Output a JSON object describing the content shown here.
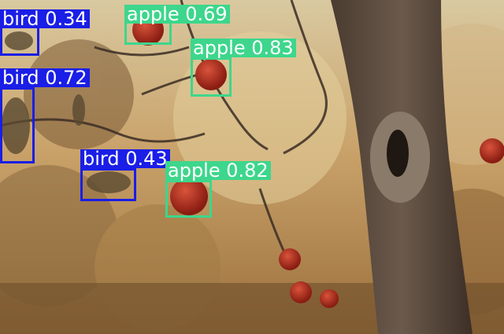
{
  "detections": [
    {
      "label": "bird",
      "score": "0.34",
      "color": "#1a1ee6"
    },
    {
      "label": "apple",
      "score": "0.69",
      "color": "#3dd68c"
    },
    {
      "label": "apple",
      "score": "0.83",
      "color": "#3dd68c"
    },
    {
      "label": "bird",
      "score": "0.72",
      "color": "#1a1ee6"
    },
    {
      "label": "bird",
      "score": "0.43",
      "color": "#1a1ee6"
    },
    {
      "label": "apple",
      "score": "0.82",
      "color": "#3dd68c"
    }
  ]
}
